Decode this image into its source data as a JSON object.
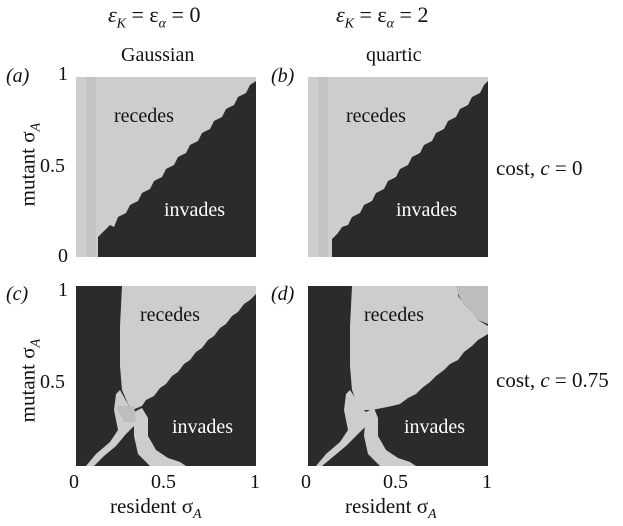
{
  "columns": [
    {
      "eq_left": "ε",
      "eq_k": "K",
      "eq_mid": " = ε",
      "eq_a": "α",
      "eq_right": " = 0",
      "kernel": "Gaussian"
    },
    {
      "eq_left": "ε",
      "eq_k": "K",
      "eq_mid": " = ε",
      "eq_a": "α",
      "eq_right": " = 2",
      "kernel": "quartic"
    }
  ],
  "rows": [
    {
      "cost_prefix": "cost, ",
      "cost_var": "c",
      "cost_value": " = 0"
    },
    {
      "cost_prefix": "cost, ",
      "cost_var": "c",
      "cost_value": " = 0.75"
    }
  ],
  "panels": [
    {
      "label": "(a)",
      "region_top": "recedes",
      "region_bottom": "invades"
    },
    {
      "label": "(b)",
      "region_top": "recedes",
      "region_bottom": "invades"
    },
    {
      "label": "(c)",
      "region_top": "recedes",
      "region_bottom": "invades"
    },
    {
      "label": "(d)",
      "region_top": "recedes",
      "region_bottom": "invades"
    }
  ],
  "axes": {
    "y_label_prefix": "mutant σ",
    "y_label_sub": "A",
    "x_label_prefix": "resident σ",
    "x_label_sub": "A",
    "y_ticks": [
      "1",
      "0.5",
      "0"
    ],
    "x_ticks": [
      "0",
      "0.5",
      "1"
    ]
  },
  "colors": {
    "invades": "#2b2b2b",
    "recedes": "#cdcdcd",
    "boundary": "#e6e6e6"
  }
}
